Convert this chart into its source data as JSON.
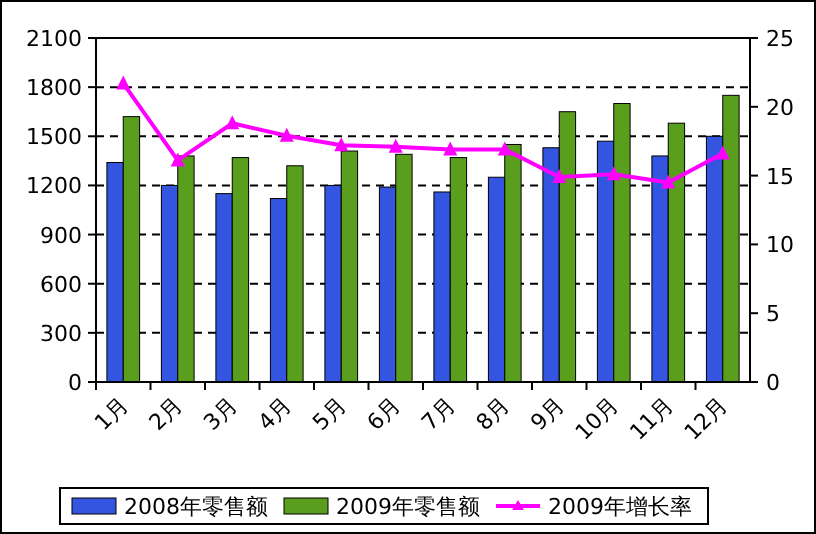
{
  "chart_data": {
    "type": "bar",
    "categories": [
      "1月",
      "2月",
      "3月",
      "4月",
      "5月",
      "6月",
      "7月",
      "8月",
      "9月",
      "10月",
      "11月",
      "12月"
    ],
    "series": [
      {
        "name": "2008年零售额",
        "color": "#3355e0",
        "values": [
          1340,
          1200,
          1150,
          1120,
          1200,
          1190,
          1160,
          1250,
          1430,
          1470,
          1380,
          1500
        ]
      },
      {
        "name": "2009年零售额",
        "color": "#5a9e1e",
        "values": [
          1620,
          1380,
          1370,
          1320,
          1410,
          1390,
          1370,
          1450,
          1650,
          1700,
          1580,
          1750
        ]
      },
      {
        "name": "2009年增长率",
        "type": "line",
        "axis": "y2",
        "color": "#ff00ff",
        "marker": "triangle",
        "values": [
          21.7,
          16.1,
          18.8,
          17.9,
          17.2,
          17.1,
          16.9,
          16.9,
          14.9,
          15.1,
          14.5,
          16.6
        ]
      }
    ],
    "ylim": [
      0,
      2100
    ],
    "yticks": [
      0,
      300,
      600,
      900,
      1200,
      1500,
      1800,
      2100
    ],
    "y2lim": [
      0,
      25
    ],
    "y2ticks": [
      0,
      5,
      10,
      15,
      20,
      25
    ],
    "grid": "y",
    "legend": "bottom"
  }
}
